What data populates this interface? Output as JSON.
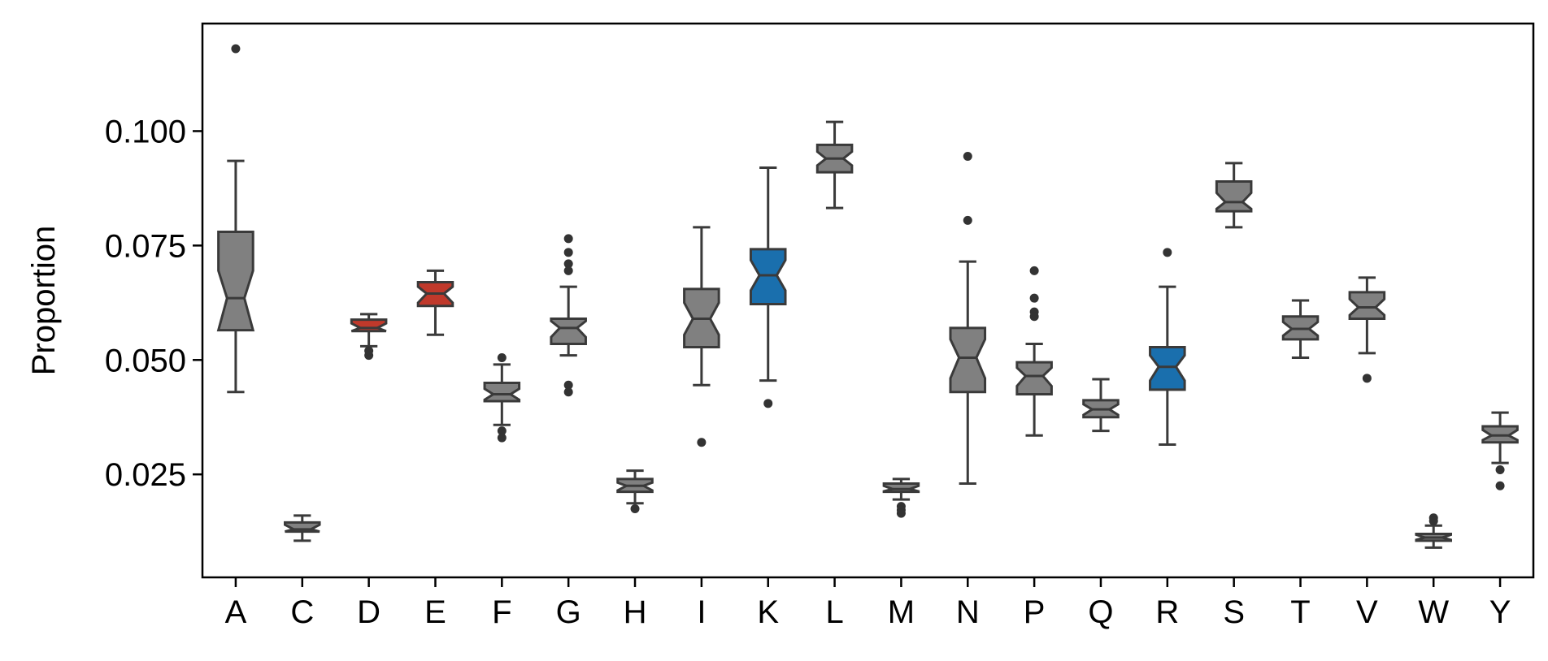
{
  "chart_data": {
    "type": "box",
    "notched": true,
    "title": "",
    "xlabel": "",
    "ylabel": "Proportion",
    "ylim": [
      0.0025,
      0.1235
    ],
    "yticks": [
      0.025,
      0.05,
      0.075,
      0.1
    ],
    "ytick_labels": [
      "0.025",
      "0.050",
      "0.075",
      "0.100"
    ],
    "grid": false,
    "colors": {
      "default": "#808080",
      "acidic": "#c0392b",
      "basic": "#1a6fad",
      "edge": "#3a3a3a"
    },
    "categories": [
      "A",
      "C",
      "D",
      "E",
      "F",
      "G",
      "H",
      "I",
      "K",
      "L",
      "M",
      "N",
      "P",
      "Q",
      "R",
      "S",
      "T",
      "V",
      "W",
      "Y"
    ],
    "boxes": [
      {
        "label": "A",
        "whislo": 0.043,
        "q1": 0.0565,
        "med": 0.0635,
        "q3": 0.078,
        "whishi": 0.0935,
        "notch": [
          0.0565,
          0.0695
        ],
        "fliers": [
          0.118
        ],
        "color": "default"
      },
      {
        "label": "C",
        "whislo": 0.0105,
        "q1": 0.0125,
        "med": 0.013,
        "q3": 0.0145,
        "whishi": 0.016,
        "notch": [
          0.0125,
          0.014
        ],
        "fliers": [],
        "color": "default"
      },
      {
        "label": "D",
        "whislo": 0.053,
        "q1": 0.0563,
        "med": 0.057,
        "q3": 0.0588,
        "whishi": 0.06,
        "notch": [
          0.0563,
          0.058
        ],
        "fliers": [
          0.051,
          0.052
        ],
        "color": "acidic"
      },
      {
        "label": "E",
        "whislo": 0.0555,
        "q1": 0.0618,
        "med": 0.0645,
        "q3": 0.067,
        "whishi": 0.0695,
        "notch": [
          0.0625,
          0.066
        ],
        "fliers": [],
        "color": "acidic"
      },
      {
        "label": "F",
        "whislo": 0.0358,
        "q1": 0.041,
        "med": 0.0425,
        "q3": 0.045,
        "whishi": 0.049,
        "notch": [
          0.0413,
          0.0437
        ],
        "fliers": [
          0.0505,
          0.0345,
          0.033
        ],
        "color": "default"
      },
      {
        "label": "G",
        "whislo": 0.051,
        "q1": 0.0535,
        "med": 0.057,
        "q3": 0.059,
        "whishi": 0.066,
        "notch": [
          0.055,
          0.0585
        ],
        "fliers": [
          0.0765,
          0.0735,
          0.071,
          0.0695,
          0.0445,
          0.043
        ],
        "color": "default"
      },
      {
        "label": "H",
        "whislo": 0.0187,
        "q1": 0.0212,
        "med": 0.0225,
        "q3": 0.024,
        "whishi": 0.0258,
        "notch": [
          0.0215,
          0.0232
        ],
        "fliers": [
          0.0175
        ],
        "color": "default"
      },
      {
        "label": "I",
        "whislo": 0.0445,
        "q1": 0.0528,
        "med": 0.059,
        "q3": 0.0655,
        "whishi": 0.079,
        "notch": [
          0.0555,
          0.0625
        ],
        "fliers": [
          0.032
        ],
        "color": "default"
      },
      {
        "label": "K",
        "whislo": 0.0455,
        "q1": 0.0622,
        "med": 0.0685,
        "q3": 0.0742,
        "whishi": 0.092,
        "notch": [
          0.0652,
          0.0718
        ],
        "fliers": [
          0.0405
        ],
        "color": "basic"
      },
      {
        "label": "L",
        "whislo": 0.0832,
        "q1": 0.091,
        "med": 0.094,
        "q3": 0.097,
        "whishi": 0.102,
        "notch": [
          0.0925,
          0.0955
        ],
        "fliers": [],
        "color": "default"
      },
      {
        "label": "M",
        "whislo": 0.0195,
        "q1": 0.0212,
        "med": 0.0218,
        "q3": 0.023,
        "whishi": 0.024,
        "notch": [
          0.0213,
          0.0225
        ],
        "fliers": [
          0.018,
          0.0172,
          0.0165
        ],
        "color": "default"
      },
      {
        "label": "N",
        "whislo": 0.023,
        "q1": 0.043,
        "med": 0.0505,
        "q3": 0.057,
        "whishi": 0.0715,
        "notch": [
          0.046,
          0.0545
        ],
        "fliers": [
          0.0945,
          0.0805
        ],
        "color": "default"
      },
      {
        "label": "P",
        "whislo": 0.0335,
        "q1": 0.0425,
        "med": 0.0465,
        "q3": 0.0495,
        "whishi": 0.0535,
        "notch": [
          0.0443,
          0.0483
        ],
        "fliers": [
          0.0695,
          0.0635,
          0.0605,
          0.0595
        ],
        "color": "default"
      },
      {
        "label": "Q",
        "whislo": 0.0345,
        "q1": 0.0375,
        "med": 0.0392,
        "q3": 0.0412,
        "whishi": 0.0458,
        "notch": [
          0.038,
          0.0403
        ],
        "fliers": [],
        "color": "default"
      },
      {
        "label": "R",
        "whislo": 0.0315,
        "q1": 0.0435,
        "med": 0.0485,
        "q3": 0.0528,
        "whishi": 0.066,
        "notch": [
          0.0455,
          0.051
        ],
        "fliers": [
          0.0735
        ],
        "color": "basic"
      },
      {
        "label": "S",
        "whislo": 0.079,
        "q1": 0.0825,
        "med": 0.0845,
        "q3": 0.089,
        "whishi": 0.093,
        "notch": [
          0.083,
          0.0865
        ],
        "fliers": [],
        "color": "default"
      },
      {
        "label": "T",
        "whislo": 0.0505,
        "q1": 0.0545,
        "med": 0.0568,
        "q3": 0.0595,
        "whishi": 0.063,
        "notch": [
          0.0553,
          0.0583
        ],
        "fliers": [],
        "color": "default"
      },
      {
        "label": "V",
        "whislo": 0.0515,
        "q1": 0.059,
        "med": 0.0615,
        "q3": 0.0648,
        "whishi": 0.068,
        "notch": [
          0.0598,
          0.0633
        ],
        "fliers": [
          0.046
        ],
        "color": "default"
      },
      {
        "label": "W",
        "whislo": 0.009,
        "q1": 0.0105,
        "med": 0.0112,
        "q3": 0.012,
        "whishi": 0.0138,
        "notch": [
          0.0107,
          0.0118
        ],
        "fliers": [
          0.0155,
          0.0148
        ],
        "color": "default"
      },
      {
        "label": "Y",
        "whislo": 0.0275,
        "q1": 0.032,
        "med": 0.0335,
        "q3": 0.0355,
        "whishi": 0.0385,
        "notch": [
          0.0325,
          0.0347
        ],
        "fliers": [
          0.026,
          0.0225
        ],
        "color": "default"
      }
    ]
  }
}
